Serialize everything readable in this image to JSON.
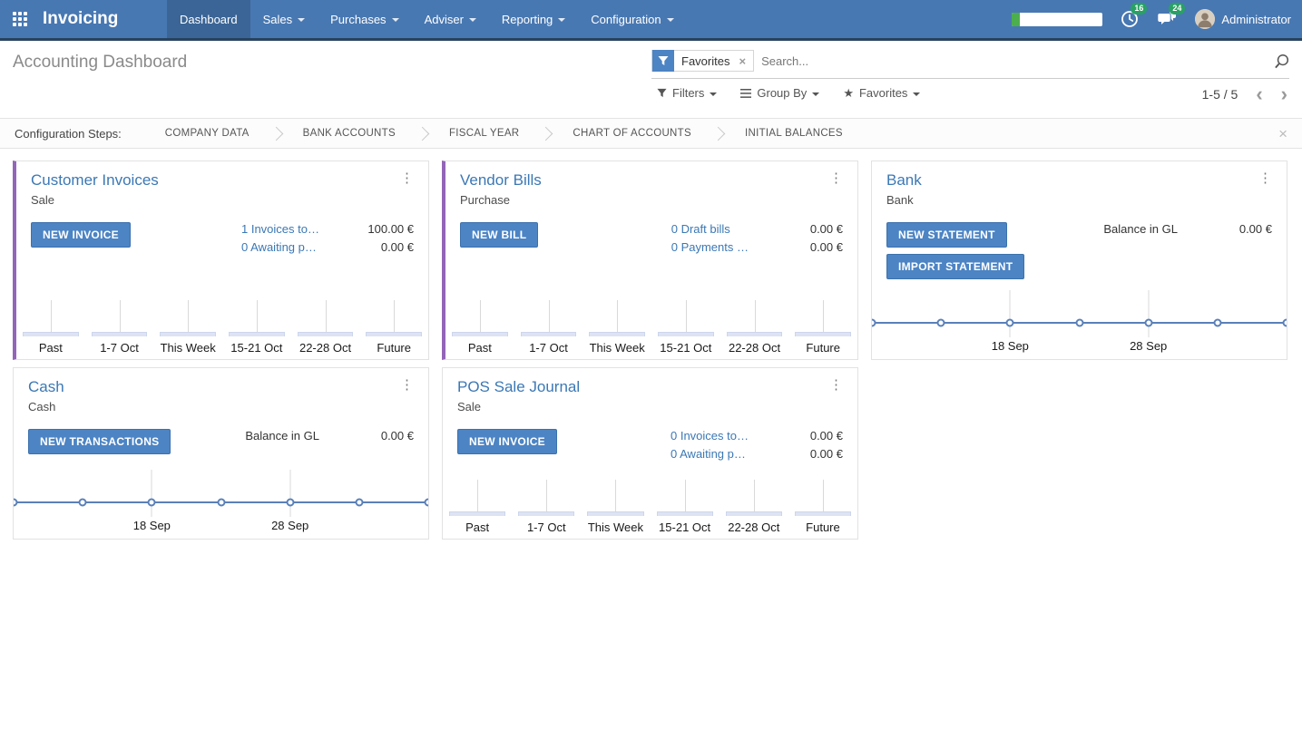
{
  "colors": {
    "navbar_bg": "#4878b2",
    "navbar_active_bg": "#3b6596",
    "accent_purple": "#9365b8",
    "button_blue": "#4c84c4",
    "button_blue_border": "#3c71ad",
    "link_blue": "#3b78b5",
    "badge_green": "#28a164",
    "progress_green": "#4cae4c",
    "line_blue": "#5a80b9",
    "bar_fill": "#dde3f2",
    "bar_border": "#ccd6ec",
    "grid_gray": "#d9d9d9"
  },
  "navbar": {
    "brand": "Invoicing",
    "menus": [
      {
        "label": "Dashboard",
        "active": true,
        "dropdown": false
      },
      {
        "label": "Sales",
        "active": false,
        "dropdown": true
      },
      {
        "label": "Purchases",
        "active": false,
        "dropdown": true
      },
      {
        "label": "Adviser",
        "active": false,
        "dropdown": true
      },
      {
        "label": "Reporting",
        "active": false,
        "dropdown": true
      },
      {
        "label": "Configuration",
        "active": false,
        "dropdown": true
      }
    ],
    "systray": {
      "progress_percent": 9,
      "activity_badge": "16",
      "message_badge": "24",
      "user_name": "Administrator"
    }
  },
  "control_panel": {
    "title": "Accounting Dashboard",
    "search": {
      "facet": "Favorites",
      "remove": "×",
      "placeholder": "Search..."
    },
    "filter_buttons": [
      {
        "label": "Filters"
      },
      {
        "label": "Group By"
      },
      {
        "label": "Favorites"
      }
    ],
    "pager": {
      "range": "1-5 / 5",
      "prev": "‹",
      "next": "›"
    }
  },
  "config_steps": {
    "label": "Configuration Steps:",
    "steps": [
      "COMPANY DATA",
      "BANK ACCOUNTS",
      "FISCAL YEAR",
      "CHART OF ACCOUNTS",
      "INITIAL BALANCES"
    ],
    "close": "×"
  },
  "cards": [
    {
      "title": "Customer Invoices",
      "subtitle": "Sale",
      "accent": true,
      "buttons": [
        "NEW INVOICE"
      ],
      "rows": [
        {
          "label": "1 Invoices to…",
          "amount": "100.00 €",
          "link": true
        },
        {
          "label": "0 Awaiting p…",
          "amount": "0.00 €",
          "link": true
        }
      ],
      "chart": {
        "type": "bar",
        "categories": [
          "Past",
          "1-7 Oct",
          "This Week",
          "15-21 Oct",
          "22-28 Oct",
          "Future"
        ],
        "values": [
          0,
          0,
          0,
          0,
          0,
          0
        ]
      }
    },
    {
      "title": "Vendor Bills",
      "subtitle": "Purchase",
      "accent": true,
      "buttons": [
        "NEW BILL"
      ],
      "rows": [
        {
          "label": "0 Draft bills",
          "amount": "0.00 €",
          "link": true
        },
        {
          "label": "0 Payments …",
          "amount": "0.00 €",
          "link": true
        }
      ],
      "chart": {
        "type": "bar",
        "categories": [
          "Past",
          "1-7 Oct",
          "This Week",
          "15-21 Oct",
          "22-28 Oct",
          "Future"
        ],
        "values": [
          0,
          0,
          0,
          0,
          0,
          0
        ]
      }
    },
    {
      "title": "Bank",
      "subtitle": "Bank",
      "accent": false,
      "buttons": [
        "NEW STATEMENT",
        "IMPORT STATEMENT"
      ],
      "rows": [
        {
          "label": "Balance in GL",
          "amount": "0.00 €",
          "link": false
        }
      ],
      "chart": {
        "type": "line",
        "values": [
          0,
          0,
          0,
          0,
          0,
          0,
          0
        ],
        "ticks": [
          {
            "label": "18 Sep",
            "pos": 0.3333
          },
          {
            "label": "28 Sep",
            "pos": 0.6667
          }
        ]
      }
    },
    {
      "title": "Cash",
      "subtitle": "Cash",
      "accent": false,
      "buttons": [
        "NEW TRANSACTIONS"
      ],
      "rows": [
        {
          "label": "Balance in GL",
          "amount": "0.00 €",
          "link": false
        }
      ],
      "chart": {
        "type": "line",
        "values": [
          0,
          0,
          0,
          0,
          0,
          0,
          0
        ],
        "ticks": [
          {
            "label": "18 Sep",
            "pos": 0.3333
          },
          {
            "label": "28 Sep",
            "pos": 0.6667
          }
        ]
      }
    },
    {
      "title": "POS Sale Journal",
      "subtitle": "Sale",
      "accent": false,
      "buttons": [
        "NEW INVOICE"
      ],
      "rows": [
        {
          "label": "0 Invoices to…",
          "amount": "0.00 €",
          "link": true
        },
        {
          "label": "0 Awaiting p…",
          "amount": "0.00 €",
          "link": true
        }
      ],
      "chart": {
        "type": "bar",
        "categories": [
          "Past",
          "1-7 Oct",
          "This Week",
          "15-21 Oct",
          "22-28 Oct",
          "Future"
        ],
        "values": [
          0,
          0,
          0,
          0,
          0,
          0
        ]
      }
    }
  ]
}
